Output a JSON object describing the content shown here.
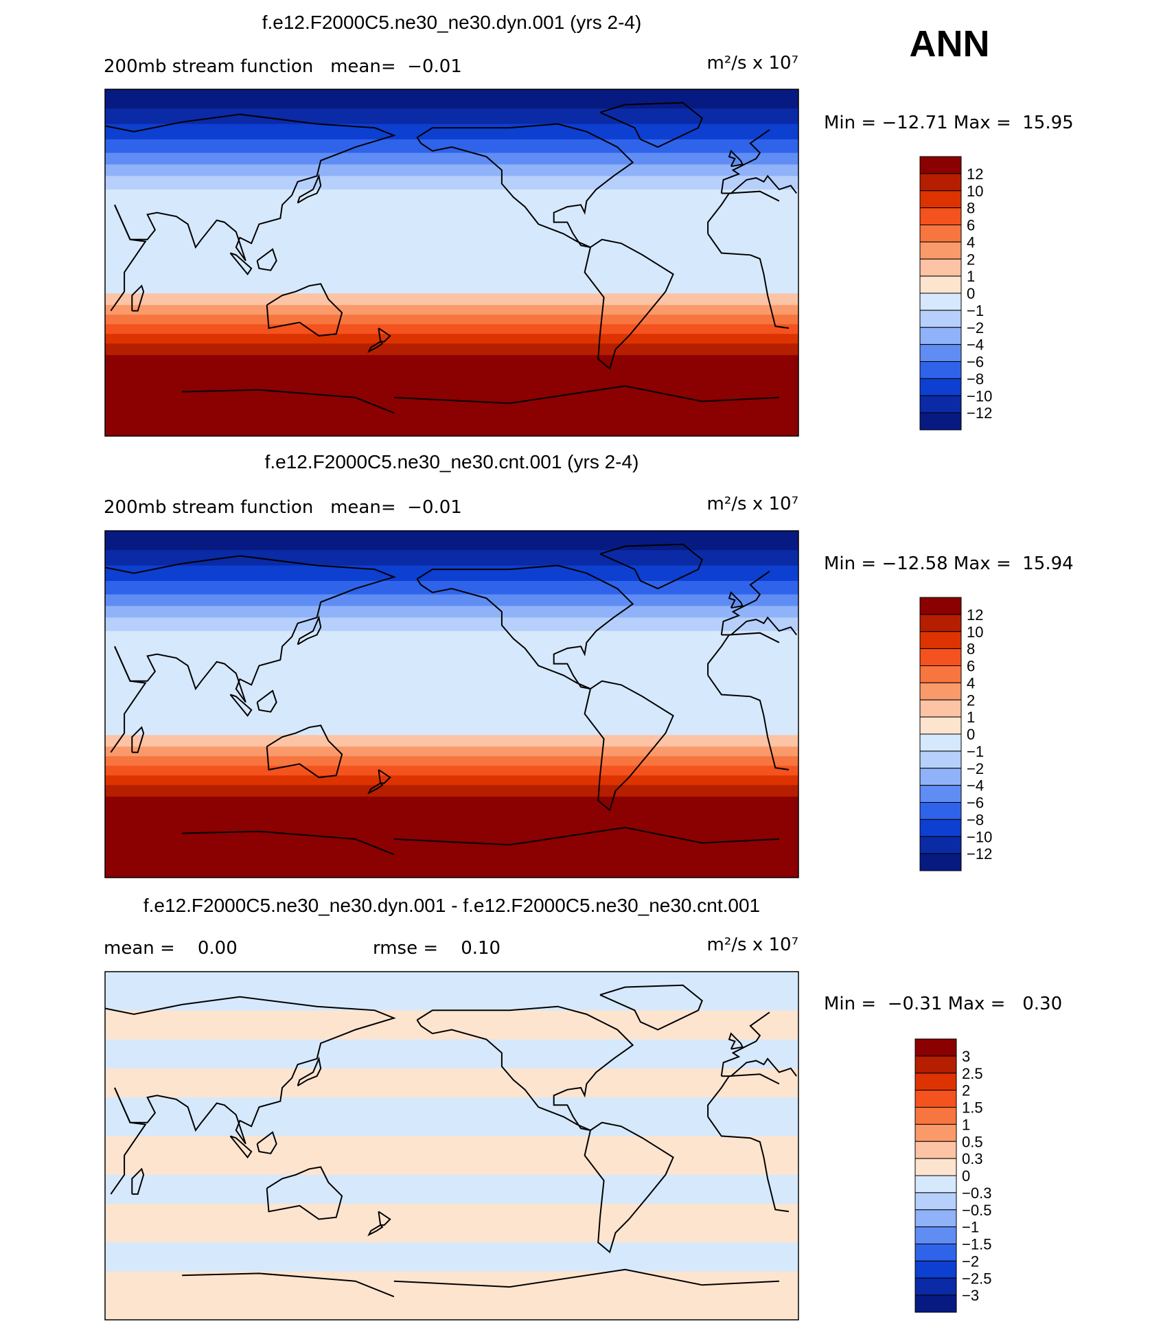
{
  "season": "ANN",
  "chart_data": [
    {
      "type": "heatmap",
      "title": "f.e12.F2000C5.ne30_ne30.dyn.001 (yrs 2-4)",
      "left_label": "200mb stream function   mean=  −0.01",
      "units": "m²/s x 10⁷",
      "min_max_text": "Min = −12.71 Max =  15.95",
      "min": -12.71,
      "max": 15.95,
      "colorbar": {
        "levels": [
          "12",
          "10",
          "8",
          "6",
          "4",
          "2",
          "1",
          "0",
          "−1",
          "−2",
          "−4",
          "−6",
          "−8",
          "−10",
          "−12"
        ],
        "colors": [
          "#8b0000",
          "#b51e00",
          "#dc3300",
          "#f4521e",
          "#f7753e",
          "#fa9a6b",
          "#fcc3a5",
          "#fde4cf",
          "#d6e8fb",
          "#b6d0fb",
          "#8fb2f8",
          "#5f8df4",
          "#2f63ea",
          "#0d3fd0",
          "#0a2aa6",
          "#071a82"
        ]
      },
      "bands": [
        {
          "lat": 90,
          "c": 15
        },
        {
          "lat": 80,
          "c": 14
        },
        {
          "lat": 72,
          "c": 13
        },
        {
          "lat": 64,
          "c": 12
        },
        {
          "lat": 57,
          "c": 11
        },
        {
          "lat": 51,
          "c": 10
        },
        {
          "lat": 45,
          "c": 9
        },
        {
          "lat": 38,
          "c": 8
        },
        {
          "lat": 22,
          "c": 8
        },
        {
          "lat": 12,
          "c": 8
        },
        {
          "lat": 2,
          "c": 8
        },
        {
          "lat": -8,
          "c": 8
        },
        {
          "lat": -16,
          "c": 6
        },
        {
          "lat": -22,
          "c": 5
        },
        {
          "lat": -27,
          "c": 4
        },
        {
          "lat": -32,
          "c": 3
        },
        {
          "lat": -37,
          "c": 2
        },
        {
          "lat": -42,
          "c": 1
        },
        {
          "lat": -48,
          "c": 0
        }
      ]
    },
    {
      "type": "heatmap",
      "title": "f.e12.F2000C5.ne30_ne30.cnt.001 (yrs 2-4)",
      "left_label": "200mb stream function   mean=  −0.01",
      "units": "m²/s x 10⁷",
      "min_max_text": "Min = −12.58 Max =  15.94",
      "min": -12.58,
      "max": 15.94,
      "colorbar": {
        "levels": [
          "12",
          "10",
          "8",
          "6",
          "4",
          "2",
          "1",
          "0",
          "−1",
          "−2",
          "−4",
          "−6",
          "−8",
          "−10",
          "−12"
        ],
        "colors": [
          "#8b0000",
          "#b51e00",
          "#dc3300",
          "#f4521e",
          "#f7753e",
          "#fa9a6b",
          "#fcc3a5",
          "#fde4cf",
          "#d6e8fb",
          "#b6d0fb",
          "#8fb2f8",
          "#5f8df4",
          "#2f63ea",
          "#0d3fd0",
          "#0a2aa6",
          "#071a82"
        ]
      },
      "bands": [
        {
          "lat": 90,
          "c": 15
        },
        {
          "lat": 80,
          "c": 14
        },
        {
          "lat": 72,
          "c": 13
        },
        {
          "lat": 64,
          "c": 12
        },
        {
          "lat": 57,
          "c": 11
        },
        {
          "lat": 51,
          "c": 10
        },
        {
          "lat": 45,
          "c": 9
        },
        {
          "lat": 38,
          "c": 8
        },
        {
          "lat": 22,
          "c": 8
        },
        {
          "lat": 12,
          "c": 8
        },
        {
          "lat": 2,
          "c": 8
        },
        {
          "lat": -8,
          "c": 8
        },
        {
          "lat": -16,
          "c": 6
        },
        {
          "lat": -22,
          "c": 5
        },
        {
          "lat": -27,
          "c": 4
        },
        {
          "lat": -32,
          "c": 3
        },
        {
          "lat": -37,
          "c": 2
        },
        {
          "lat": -42,
          "c": 1
        },
        {
          "lat": -48,
          "c": 0
        }
      ]
    },
    {
      "type": "heatmap",
      "title": "f.e12.F2000C5.ne30_ne30.dyn.001 - f.e12.F2000C5.ne30_ne30.cnt.001",
      "left_label": "mean =    0.00",
      "mid_label": "rmse =    0.10",
      "units": "m²/s x 10⁷",
      "min_max_text": "Min =  −0.31 Max =   0.30",
      "min": -0.31,
      "max": 0.3,
      "colorbar": {
        "levels": [
          "3",
          "2.5",
          "2",
          "1.5",
          "1",
          "0.5",
          "0.3",
          "0",
          "−0.3",
          "−0.5",
          "−1",
          "−1.5",
          "−2",
          "−2.5",
          "−3"
        ],
        "colors": [
          "#8b0000",
          "#b51e00",
          "#dc3300",
          "#f4521e",
          "#f7753e",
          "#fa9a6b",
          "#fcc3a5",
          "#fde4cf",
          "#d6e8fb",
          "#b6d0fb",
          "#8fb2f8",
          "#5f8df4",
          "#2f63ea",
          "#0d3fd0",
          "#0a2aa6",
          "#071a82"
        ]
      },
      "bands": [
        {
          "lat": 90,
          "c": 8
        },
        {
          "lat": 70,
          "c": 7
        },
        {
          "lat": 55,
          "c": 8
        },
        {
          "lat": 40,
          "c": 7
        },
        {
          "lat": 25,
          "c": 8
        },
        {
          "lat": 5,
          "c": 7
        },
        {
          "lat": -15,
          "c": 8
        },
        {
          "lat": -30,
          "c": 7
        },
        {
          "lat": -50,
          "c": 8
        },
        {
          "lat": -65,
          "c": 7
        }
      ]
    }
  ]
}
